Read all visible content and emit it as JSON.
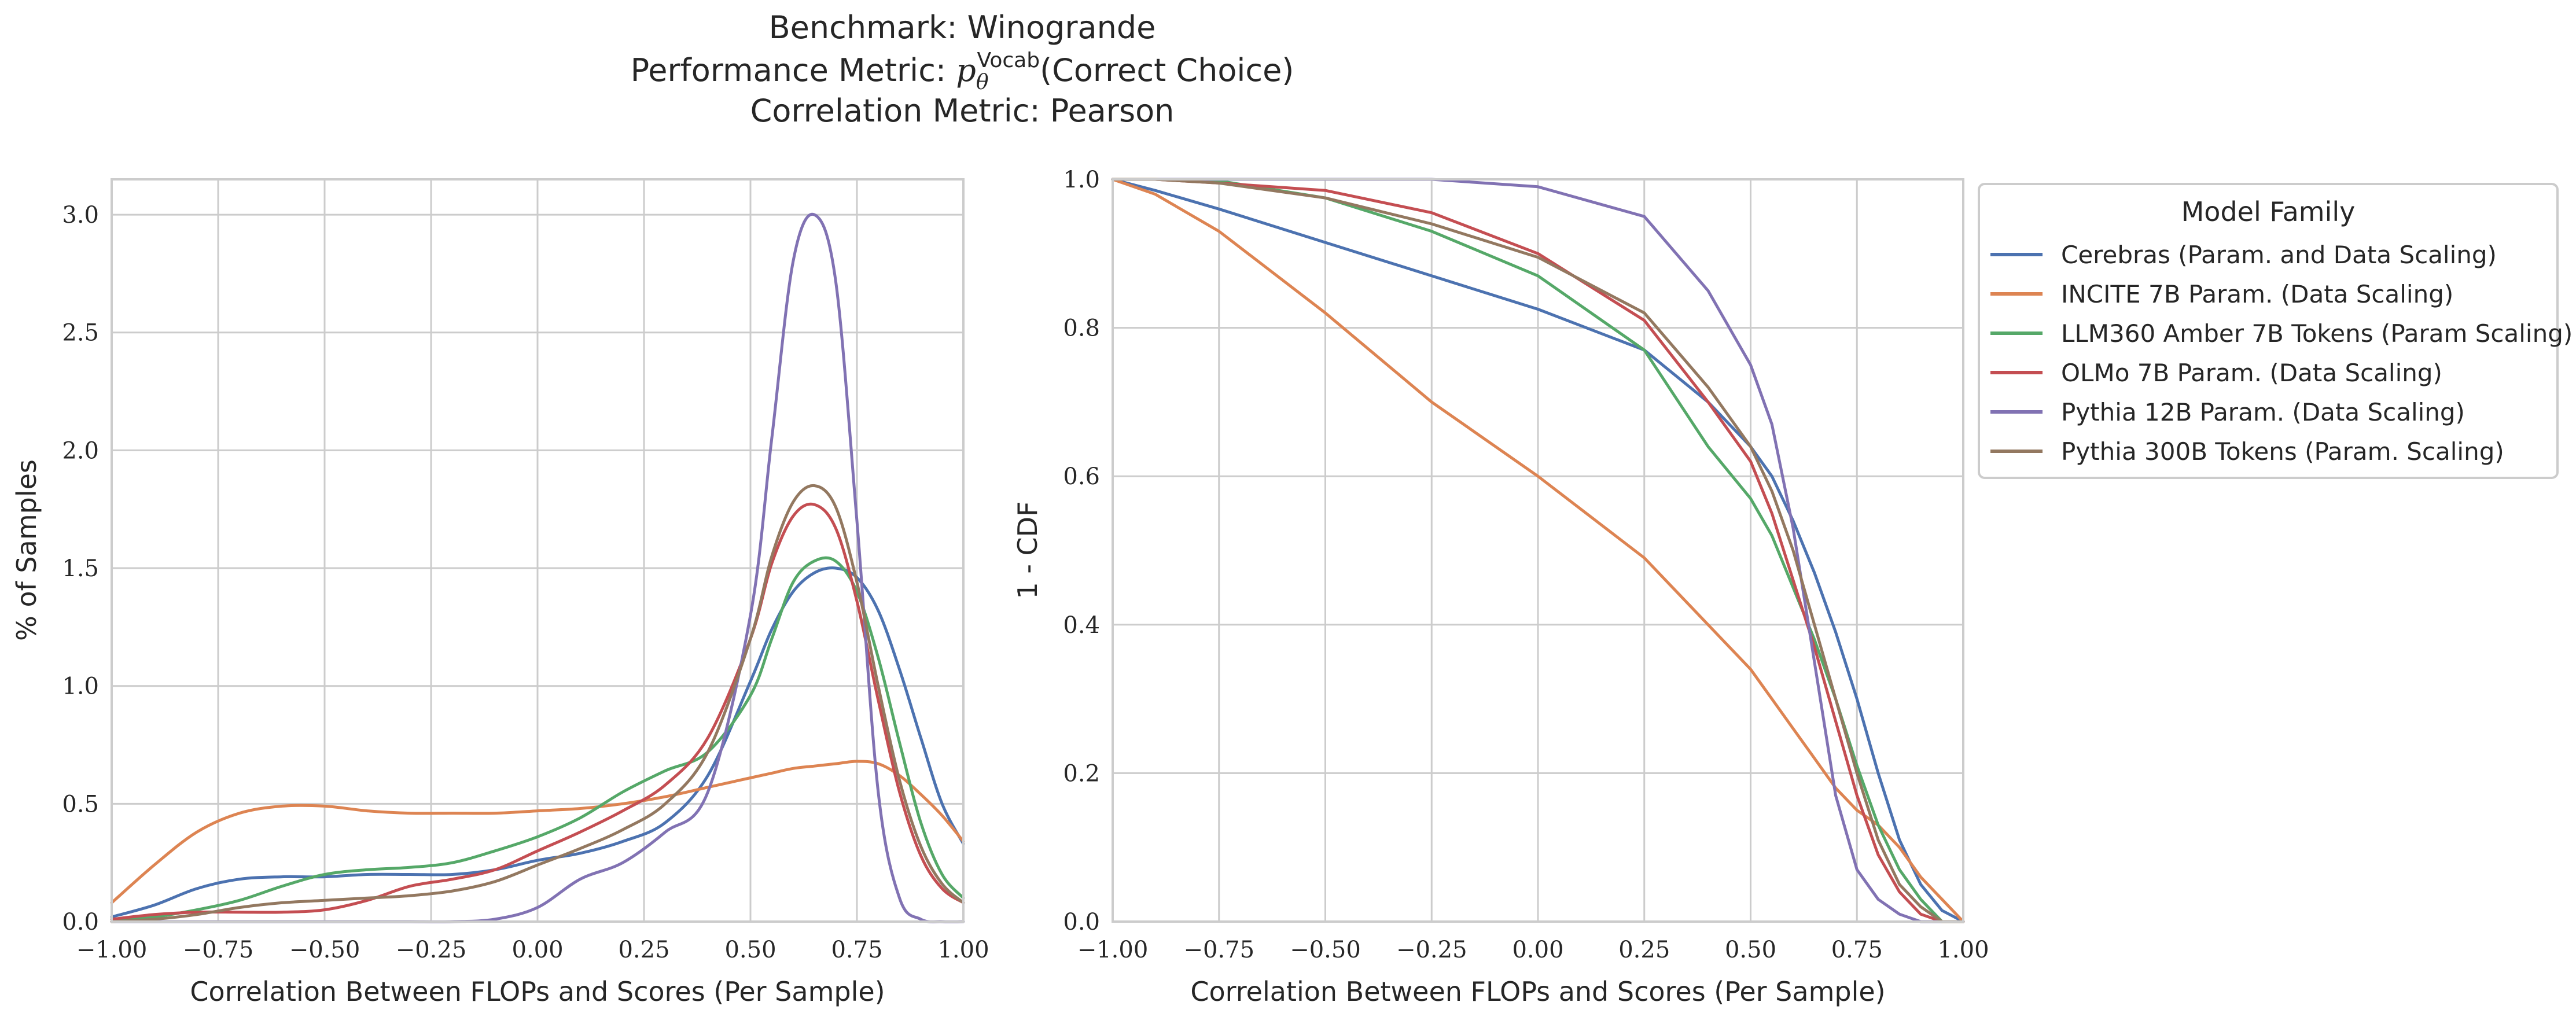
{
  "figure": {
    "title_lines": [
      "Benchmark: Winogrande",
      "Performance Metric: pθVocab(Correct Choice)",
      "Correlation Metric: Pearson"
    ],
    "title_metric_prefix": "Performance Metric: ",
    "title_metric_symbol": "p",
    "title_metric_sub": "θ",
    "title_metric_sup": "Vocab",
    "title_metric_suffix": "(Correct Choice)"
  },
  "colors": {
    "Cerebras": "#4c72b0",
    "INCITE": "#dd8452",
    "LLM360": "#55a868",
    "OLMo": "#c44e52",
    "Pythia12B": "#8172b3",
    "Pythia300B": "#937860",
    "grid": "#cccccc",
    "axis_text": "#262626"
  },
  "chart_data": [
    {
      "type": "line",
      "subtype": "kde",
      "xlabel": "Correlation Between FLOPs and Scores (Per Sample)",
      "ylabel": "% of Samples",
      "xlim": [
        -1.0,
        1.0
      ],
      "ylim": [
        0.0,
        3.15
      ],
      "xticks": [
        "−1.00",
        "−0.75",
        "−0.50",
        "−0.25",
        "0.00",
        "0.25",
        "0.50",
        "0.75",
        "1.00"
      ],
      "yticks": [
        "0.0",
        "0.5",
        "1.0",
        "1.5",
        "2.0",
        "2.5",
        "3.0"
      ],
      "grid": true,
      "x": [
        -1.0,
        -0.9,
        -0.8,
        -0.7,
        -0.6,
        -0.5,
        -0.4,
        -0.3,
        -0.2,
        -0.1,
        0.0,
        0.1,
        0.2,
        0.3,
        0.4,
        0.5,
        0.55,
        0.6,
        0.65,
        0.7,
        0.75,
        0.8,
        0.85,
        0.9,
        0.95,
        1.0
      ],
      "series": [
        {
          "name": "Cerebras (Param. and Data Scaling)",
          "color_key": "Cerebras",
          "values": [
            0.02,
            0.07,
            0.14,
            0.18,
            0.19,
            0.19,
            0.2,
            0.2,
            0.2,
            0.22,
            0.26,
            0.29,
            0.34,
            0.42,
            0.62,
            1.02,
            1.24,
            1.4,
            1.48,
            1.5,
            1.46,
            1.32,
            1.07,
            0.78,
            0.5,
            0.33
          ]
        },
        {
          "name": "INCITE 7B Param. (Data Scaling)",
          "color_key": "INCITE",
          "values": [
            0.08,
            0.24,
            0.38,
            0.46,
            0.49,
            0.49,
            0.47,
            0.46,
            0.46,
            0.46,
            0.47,
            0.48,
            0.5,
            0.53,
            0.57,
            0.61,
            0.63,
            0.65,
            0.66,
            0.67,
            0.68,
            0.67,
            0.62,
            0.54,
            0.45,
            0.34
          ]
        },
        {
          "name": "LLM360 Amber 7B Tokens (Param Scaling)",
          "color_key": "LLM360",
          "values": [
            0.01,
            0.02,
            0.05,
            0.09,
            0.15,
            0.2,
            0.22,
            0.23,
            0.25,
            0.3,
            0.36,
            0.44,
            0.55,
            0.64,
            0.72,
            0.96,
            1.2,
            1.44,
            1.53,
            1.53,
            1.4,
            1.12,
            0.76,
            0.42,
            0.2,
            0.1
          ]
        },
        {
          "name": "OLMo 7B Param. (Data Scaling)",
          "color_key": "OLMo",
          "values": [
            0.01,
            0.03,
            0.04,
            0.04,
            0.04,
            0.05,
            0.09,
            0.15,
            0.18,
            0.22,
            0.3,
            0.38,
            0.47,
            0.58,
            0.78,
            1.2,
            1.52,
            1.72,
            1.77,
            1.67,
            1.36,
            0.94,
            0.55,
            0.28,
            0.14,
            0.08
          ]
        },
        {
          "name": "Pythia 12B Param. (Data Scaling)",
          "color_key": "Pythia12B",
          "values": [
            0.0,
            0.0,
            0.0,
            0.0,
            0.0,
            0.0,
            0.0,
            0.0,
            0.0,
            0.01,
            0.06,
            0.18,
            0.25,
            0.38,
            0.55,
            1.3,
            2.05,
            2.8,
            3.0,
            2.72,
            1.7,
            0.55,
            0.1,
            0.01,
            0.0,
            0.0
          ]
        },
        {
          "name": "Pythia 300B Tokens (Param. Scaling)",
          "color_key": "Pythia300B",
          "values": [
            0.0,
            0.01,
            0.03,
            0.06,
            0.08,
            0.09,
            0.1,
            0.11,
            0.13,
            0.17,
            0.24,
            0.31,
            0.39,
            0.5,
            0.72,
            1.2,
            1.55,
            1.78,
            1.85,
            1.76,
            1.44,
            1.0,
            0.6,
            0.32,
            0.16,
            0.08
          ]
        }
      ]
    },
    {
      "type": "line",
      "subtype": "survival",
      "xlabel": "Correlation Between FLOPs and Scores (Per Sample)",
      "ylabel": "1 - CDF",
      "xlim": [
        -1.0,
        1.0
      ],
      "ylim": [
        0.0,
        1.0
      ],
      "xticks": [
        "−1.00",
        "−0.75",
        "−0.50",
        "−0.25",
        "0.00",
        "0.25",
        "0.50",
        "0.75",
        "1.00"
      ],
      "yticks": [
        "0.0",
        "0.2",
        "0.4",
        "0.6",
        "0.8",
        "1.0"
      ],
      "grid": true,
      "legend_title": "Model Family",
      "legend_position": "outside-right-top",
      "x": [
        -1.0,
        -0.9,
        -0.75,
        -0.5,
        -0.25,
        0.0,
        0.25,
        0.4,
        0.5,
        0.55,
        0.6,
        0.65,
        0.7,
        0.75,
        0.8,
        0.85,
        0.9,
        0.95,
        1.0
      ],
      "series": [
        {
          "name": "Cerebras (Param. and Data Scaling)",
          "color_key": "Cerebras",
          "values": [
            1.0,
            0.985,
            0.96,
            0.915,
            0.87,
            0.825,
            0.77,
            0.7,
            0.64,
            0.6,
            0.54,
            0.47,
            0.39,
            0.3,
            0.2,
            0.11,
            0.05,
            0.015,
            0.0
          ]
        },
        {
          "name": "INCITE 7B Param. (Data Scaling)",
          "color_key": "INCITE",
          "values": [
            1.0,
            0.98,
            0.93,
            0.82,
            0.7,
            0.6,
            0.49,
            0.4,
            0.34,
            0.3,
            0.26,
            0.22,
            0.18,
            0.15,
            0.13,
            0.1,
            0.06,
            0.03,
            0.0
          ]
        },
        {
          "name": "LLM360 Amber 7B Tokens (Param Scaling)",
          "color_key": "LLM360",
          "values": [
            1.0,
            1.0,
            0.998,
            0.975,
            0.93,
            0.87,
            0.77,
            0.64,
            0.57,
            0.52,
            0.45,
            0.38,
            0.3,
            0.21,
            0.13,
            0.07,
            0.03,
            0.0,
            0.0
          ]
        },
        {
          "name": "OLMo 7B Param. (Data Scaling)",
          "color_key": "OLMo",
          "values": [
            1.0,
            1.0,
            0.995,
            0.985,
            0.955,
            0.9,
            0.81,
            0.7,
            0.62,
            0.55,
            0.46,
            0.37,
            0.27,
            0.17,
            0.09,
            0.04,
            0.01,
            0.0,
            0.0
          ]
        },
        {
          "name": "Pythia 12B Param. (Data Scaling)",
          "color_key": "Pythia12B",
          "values": [
            1.0,
            1.0,
            1.0,
            1.0,
            1.0,
            0.99,
            0.95,
            0.85,
            0.75,
            0.67,
            0.53,
            0.35,
            0.17,
            0.07,
            0.03,
            0.01,
            0.0,
            0.0,
            0.0
          ]
        },
        {
          "name": "Pythia 300B Tokens (Param. Scaling)",
          "color_key": "Pythia300B",
          "values": [
            1.0,
            1.0,
            0.995,
            0.975,
            0.94,
            0.895,
            0.82,
            0.72,
            0.64,
            0.58,
            0.5,
            0.4,
            0.3,
            0.2,
            0.11,
            0.05,
            0.02,
            0.0,
            0.0
          ]
        }
      ]
    }
  ]
}
